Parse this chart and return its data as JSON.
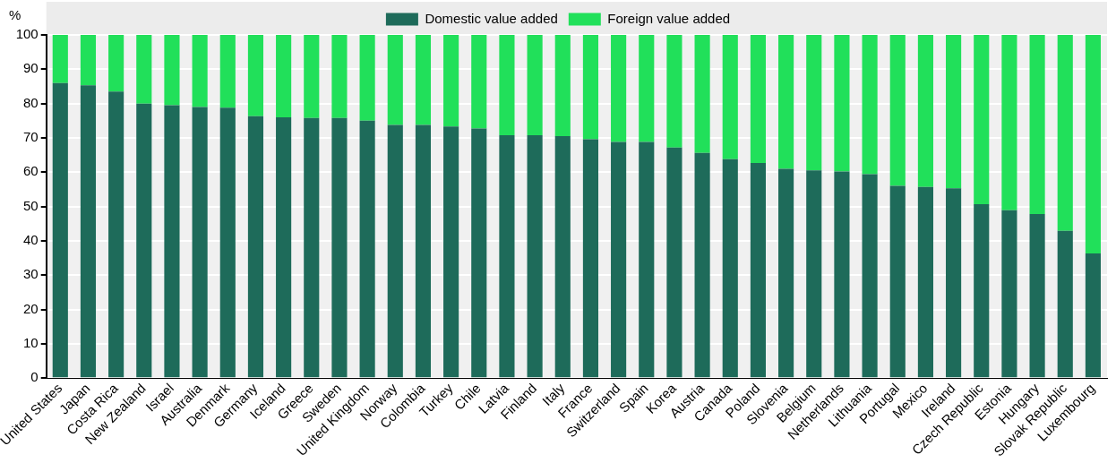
{
  "chart_data": {
    "type": "bar",
    "stacked": true,
    "ylabel": "%",
    "categories": [
      "United States",
      "Japan",
      "Costa Rica",
      "New Zealand",
      "Israel",
      "Australia",
      "Denmark",
      "Germany",
      "Iceland",
      "Greece",
      "Sweden",
      "United Kingdom",
      "Norway",
      "Colombia",
      "Turkey",
      "Chile",
      "Latvia",
      "Finland",
      "Italy",
      "France",
      "Switzerland",
      "Spain",
      "Korea",
      "Austria",
      "Canada",
      "Poland",
      "Slovenia",
      "Belgium",
      "Netherlands",
      "Lithuania",
      "Portugal",
      "Mexico",
      "Ireland",
      "Czech Republic",
      "Estonia",
      "Hungary",
      "Slovak Republic",
      "Luxembourg"
    ],
    "series": [
      {
        "name": "Domestic value added",
        "color": "#1e6b5a",
        "values": [
          86,
          85.3,
          83.5,
          80,
          79.5,
          79,
          78.8,
          76.3,
          76,
          75.8,
          75.8,
          75,
          73.8,
          73.8,
          73.3,
          72.7,
          70.8,
          70.8,
          70.5,
          69.6,
          68.8,
          68.8,
          67.2,
          65.6,
          63.8,
          62.7,
          61,
          60.5,
          60.2,
          59.4,
          56,
          55.7,
          55.3,
          50.7,
          48.9,
          47.8,
          42.9,
          36.3
        ]
      },
      {
        "name": "Foreign value added",
        "color": "#21e05a",
        "values": [
          14,
          14.7,
          16.5,
          20,
          20.5,
          21,
          21.2,
          23.7,
          24,
          24.2,
          24.2,
          25,
          26.2,
          26.2,
          26.7,
          27.3,
          29.2,
          29.2,
          29.5,
          30.4,
          31.2,
          31.2,
          32.8,
          34.4,
          36.2,
          37.3,
          39,
          39.5,
          39.8,
          40.6,
          44,
          44.3,
          44.7,
          49.3,
          51.1,
          52.2,
          57.1,
          63.7
        ]
      }
    ],
    "ylim": [
      0,
      100
    ],
    "yticks": [
      0,
      10,
      20,
      30,
      40,
      50,
      60,
      70,
      80,
      90,
      100
    ],
    "grid": true,
    "legend": "top"
  }
}
